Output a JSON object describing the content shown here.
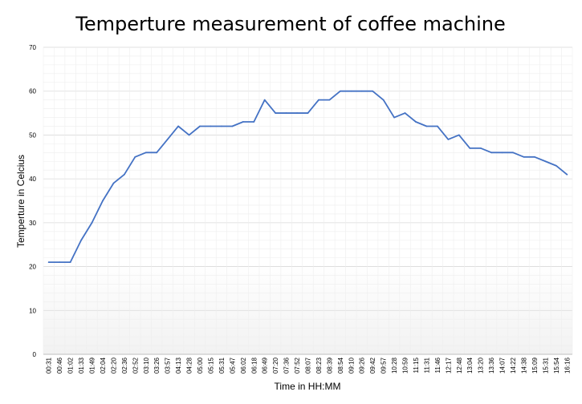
{
  "chart_data": {
    "type": "line",
    "title": "Temperture measurement of coffee machine",
    "xlabel": "Time in HH:MM",
    "ylabel": "Temperture in Celcius",
    "ylim": [
      0,
      70
    ],
    "yticks": [
      0,
      10,
      20,
      30,
      40,
      50,
      60,
      70
    ],
    "grid": true,
    "legend": "none",
    "line_color": "#4472c4",
    "categories": [
      "00:31",
      "00:46",
      "01:02",
      "01:33",
      "01:49",
      "02:04",
      "02:20",
      "02:36",
      "02:52",
      "03:10",
      "03:26",
      "03:57",
      "04:13",
      "04:28",
      "05:00",
      "05:15",
      "05:31",
      "05:47",
      "06:02",
      "06:18",
      "06:49",
      "07:20",
      "07:36",
      "07:52",
      "08:07",
      "08:23",
      "08:39",
      "08:54",
      "09:10",
      "09:26",
      "09:42",
      "09:57",
      "10:28",
      "10:59",
      "11:15",
      "11:31",
      "11:46",
      "12:17",
      "12:48",
      "13:04",
      "13:20",
      "13:36",
      "14:07",
      "14:22",
      "14:38",
      "15:09",
      "15:31",
      "15:54",
      "16:16"
    ],
    "series": [
      {
        "values": [
          21,
          21,
          21,
          26,
          30,
          35,
          39,
          41,
          45,
          46,
          46,
          49,
          52,
          50,
          52,
          52,
          52,
          52,
          53,
          53,
          58,
          55,
          55,
          55,
          55,
          58,
          58,
          60,
          60,
          60,
          60,
          58,
          54,
          55,
          53,
          52,
          52,
          49,
          50,
          47,
          47,
          46,
          46,
          46,
          45,
          45,
          44,
          43,
          41
        ]
      }
    ]
  }
}
